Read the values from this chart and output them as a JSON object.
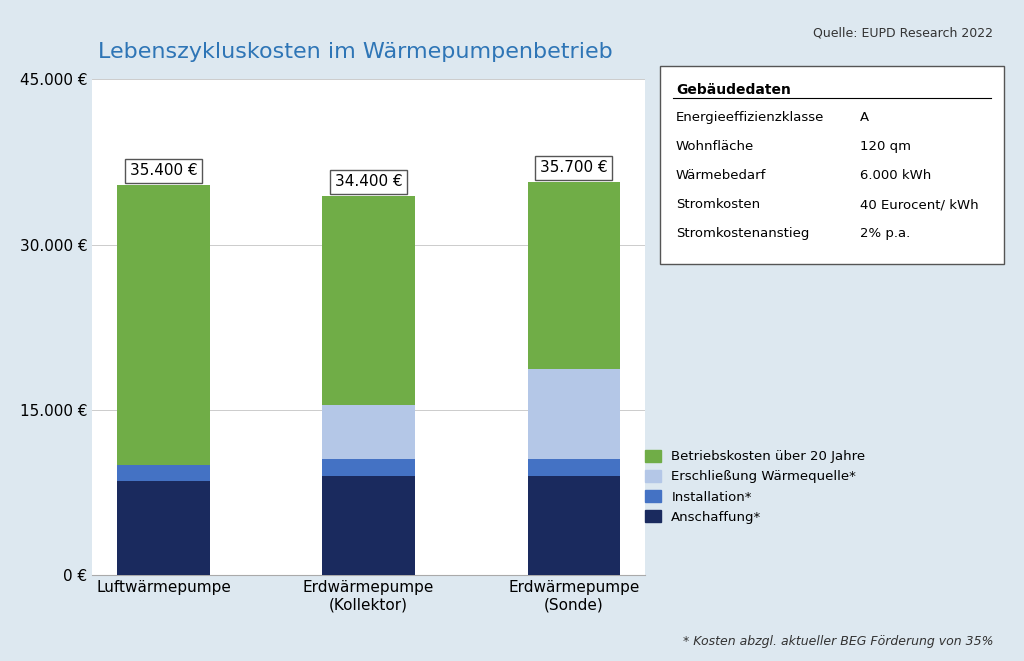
{
  "title": "Lebenszykluskosten im Wärmepumpenbetrieb",
  "source": "Quelle: EUPD Research 2022",
  "categories": [
    "Luftwärmepumpe",
    "Erdwärmepumpe\n(Kollektor)",
    "Erdwärmepumpe\n(Sonde)"
  ],
  "totals": [
    "35.400 €",
    "34.400 €",
    "35.700 €"
  ],
  "totals_vals": [
    35400,
    34400,
    35700
  ],
  "segments": {
    "Anschaffung*": [
      8500,
      9000,
      9000
    ],
    "Installation*": [
      1500,
      1500,
      1500
    ],
    "Erschließung Wärmequelle*": [
      0,
      4900,
      8200
    ],
    "Betriebskosten über 20 Jahre": [
      25400,
      19000,
      17000
    ]
  },
  "colors": {
    "Anschaffung*": "#1a2a5e",
    "Installation*": "#4472c4",
    "Erschließung Wärmequelle*": "#b4c7e7",
    "Betriebskosten über 20 Jahre": "#70ad47"
  },
  "ylim": [
    0,
    45000
  ],
  "yticks": [
    0,
    15000,
    30000,
    45000
  ],
  "ytick_labels": [
    "0 €",
    "15.000 €",
    "30.000 €",
    "45.000 €"
  ],
  "background_color": "#dde8f0",
  "plot_bg_color": "#ffffff",
  "title_color": "#2e75b6",
  "footer_note": "* Kosten abzgl. aktueller BEG Förderung von 35%",
  "info_box": {
    "title": "Gebäudedaten",
    "rows": [
      [
        "Energieeffizienzklasse",
        "A"
      ],
      [
        "Wohnfläche",
        "120 qm"
      ],
      [
        "Wärmebedarf",
        "6.000 kWh"
      ],
      [
        "Stromkosten",
        "40 Eurocent/ kWh"
      ],
      [
        "Stromkostenanstieg",
        "2% p.a."
      ]
    ]
  }
}
